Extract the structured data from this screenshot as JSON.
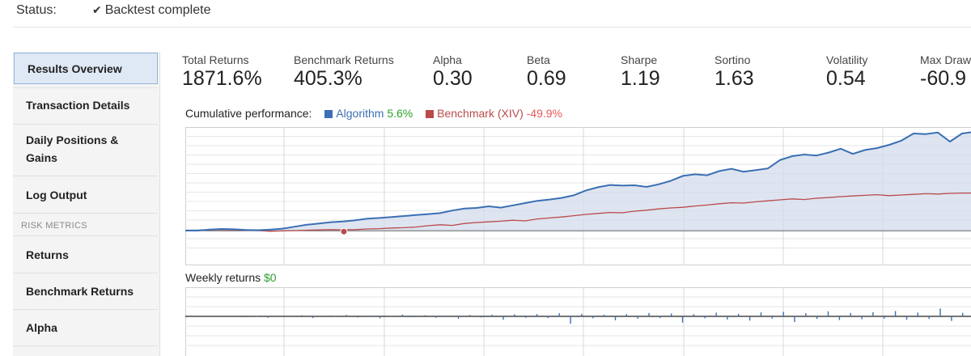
{
  "status": {
    "label": "Status:",
    "icon": "check-icon",
    "value": "Backtest complete"
  },
  "sidebar": {
    "items": [
      {
        "label": "Results Overview",
        "active": true
      },
      {
        "label": "Transaction Details"
      },
      {
        "label": "Daily Positions &",
        "label_line2": "Gains"
      },
      {
        "label": "Log Output"
      }
    ],
    "section_header": "RISK METRICS",
    "risk_items": [
      {
        "label": "Returns"
      },
      {
        "label": "Benchmark Returns"
      },
      {
        "label": "Alpha"
      }
    ]
  },
  "metrics": [
    {
      "label": "Total Returns",
      "value": "1871.6%"
    },
    {
      "label": "Benchmark Returns",
      "value": "405.3%"
    },
    {
      "label": "Alpha",
      "value": "0.30"
    },
    {
      "label": "Beta",
      "value": "0.69"
    },
    {
      "label": "Sharpe",
      "value": "1.19"
    },
    {
      "label": "Sortino",
      "value": "1.63"
    },
    {
      "label": "Volatility",
      "value": "0.54"
    },
    {
      "label": "Max Draw",
      "value": "-60.9"
    }
  ],
  "cumulative": {
    "title": "Cumulative performance:",
    "algorithm_label": "Algorithm",
    "algorithm_value": "5.6%",
    "benchmark_label": "Benchmark (XIV)",
    "benchmark_value": "-49.9%"
  },
  "weekly": {
    "title": "Weekly returns",
    "value": "$0"
  },
  "colors": {
    "algorithm": "#3b6fb3",
    "algorithm_fill": "#d3dcec",
    "benchmark": "#b94a4a",
    "positive": "#2ba02b",
    "negative": "#e85656",
    "active_nav": "#dfe9f5"
  },
  "chart_data": [
    {
      "type": "area",
      "series": [
        {
          "name": "Algorithm",
          "values": [
            0,
            0,
            0.3,
            0.5,
            0.4,
            0.2,
            0.1,
            0.3,
            0.6,
            1.2,
            1.8,
            2.2,
            2.6,
            2.8,
            3.2,
            3.7,
            3.9,
            4.2,
            4.5,
            4.8,
            5.1,
            5.4,
            6.2,
            6.8,
            7.0,
            7.5,
            7.1,
            7.8,
            8.5,
            9.2,
            9.6,
            10.1,
            10.9,
            12.4,
            13.4,
            14.1,
            13.9,
            14.0,
            13.5,
            14.3,
            15.4,
            16.9,
            17.4,
            17.1,
            18.4,
            19.1,
            18.2,
            18.7,
            19.2,
            21.8,
            23.0,
            23.5,
            23.2,
            24.1,
            25.3,
            23.7,
            24.9,
            25.5,
            26.5,
            27.8,
            30.0,
            29.8,
            30.3,
            27.5,
            30.0,
            30.5
          ]
        },
        {
          "name": "Benchmark (XIV)",
          "values": [
            0,
            0.1,
            0.2,
            0.3,
            0.2,
            0.1,
            0,
            -0.2,
            -0.1,
            0,
            0.1,
            0.2,
            0.3,
            0.2,
            0.3,
            0.5,
            0.6,
            0.8,
            0.9,
            1.1,
            1.5,
            1.8,
            1.6,
            2.2,
            2.5,
            2.7,
            2.9,
            3.2,
            3.0,
            3.6,
            3.9,
            4.2,
            4.6,
            5.0,
            5.3,
            5.6,
            5.5,
            6.0,
            6.3,
            6.7,
            7.0,
            7.2,
            7.6,
            7.9,
            8.3,
            8.6,
            8.5,
            8.9,
            9.2,
            9.5,
            9.8,
            9.6,
            10.0,
            10.2,
            10.5,
            10.7,
            10.9,
            11.1,
            10.8,
            11.0,
            11.2,
            11.4,
            11.3,
            11.5,
            11.6,
            11.6
          ]
        }
      ]
    },
    {
      "type": "bar",
      "series": [
        {
          "values": [
            0.2,
            -0.3,
            0.1,
            -0.5,
            0.3,
            -0.2,
            0.4,
            -0.6,
            0.2,
            -0.1,
            0.5,
            -0.4,
            0.3,
            -0.7,
            0.2,
            0.6,
            -0.3,
            0.4,
            -0.5,
            0.3,
            -0.9,
            0.5,
            -0.4,
            0.6,
            -1.2,
            0.7,
            -0.5,
            0.8,
            -0.6,
            1.1,
            -2.6,
            0.9,
            -0.7,
            0.6,
            -1.4,
            0.8,
            -0.9,
            1.2,
            -0.6,
            1.0,
            -2.2,
            0.8,
            -0.7,
            1.3,
            -1.1,
            0.9,
            -1.5,
            1.4,
            -0.8,
            1.6,
            -2.0,
            1.1,
            -0.9,
            1.8,
            -1.3,
            1.2,
            -1.0,
            1.5,
            -0.8,
            1.9,
            -1.2,
            1.3,
            -0.9,
            2.8,
            -1.6,
            1.2
          ]
        }
      ]
    }
  ]
}
